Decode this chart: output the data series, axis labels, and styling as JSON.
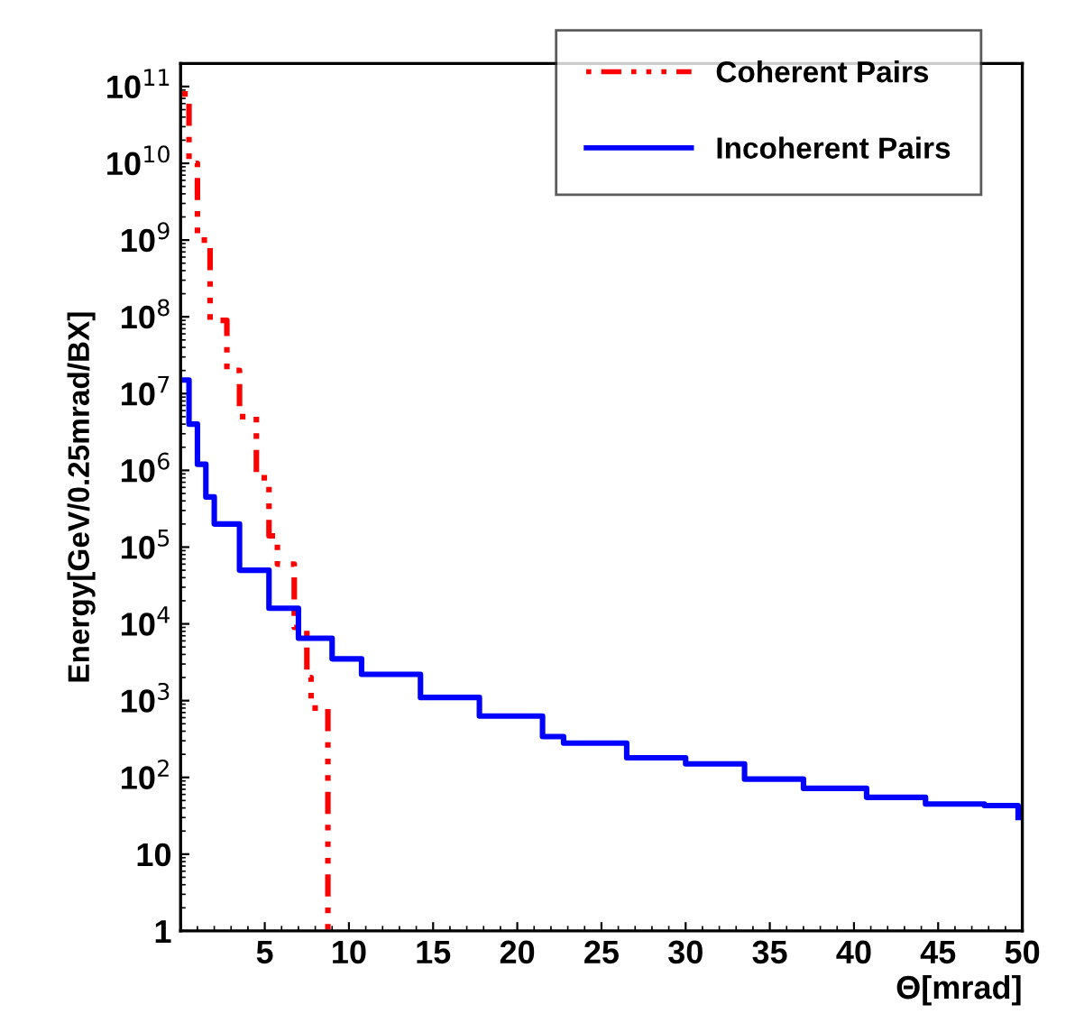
{
  "chart_data": {
    "type": "step",
    "xlabel": "Θ[mrad]",
    "ylabel": "Energy[GeV/0.25mrad/BX]",
    "log": "y",
    "grid": false,
    "legend": "top right",
    "marker": "none",
    "xlim": [
      0,
      50
    ],
    "ylim": [
      1,
      200000000000.0
    ],
    "xticks": [
      {
        "value": 0,
        "label": null
      },
      5,
      10,
      15,
      20,
      25,
      30,
      35,
      40,
      45,
      50
    ],
    "yticks": [
      1,
      10,
      {
        "value": 100,
        "label": "10$^{2}$"
      },
      {
        "value": 1000,
        "label": "10$^{3}$"
      },
      {
        "value": 10000,
        "label": "10$^{4}$"
      },
      {
        "value": 100000,
        "label": "10$^{5}$"
      },
      {
        "value": 1000000,
        "label": "10$^{6}$"
      },
      {
        "value": 10000000,
        "label": "10$^{7}$"
      },
      {
        "value": 100000000,
        "label": "10$^{8}$"
      },
      {
        "value": 1000000000,
        "label": "10$^{9}$"
      },
      {
        "value": 10000000000,
        "label": "10$^{10}$"
      },
      {
        "value": 100000000000,
        "label": "10$^{11}$"
      }
    ],
    "series": [
      {
        "name": "Coherent Pairs",
        "color": "#ff0000",
        "line_style": "dotted",
        "x": [
          0.1,
          0.5,
          1.0,
          1.75,
          2.75,
          3.5,
          4.5,
          5.25,
          5.75,
          6.75,
          7.5,
          7.75,
          8.75
        ],
        "values": [
          80000000000.0,
          10000000000.0,
          1000000000.0,
          90000000.0,
          20000000.0,
          5000000.0,
          800000.0,
          140000.0,
          60000.0,
          9000.0,
          2000.0,
          800,
          1
        ]
      },
      {
        "name": "Incoherent Pairs",
        "color": "#0000ff",
        "line_style": "solid",
        "x": [
          0.1,
          0.5,
          1.0,
          1.5,
          2.0,
          3.5,
          5.25,
          7.0,
          9.0,
          10.75,
          14.25,
          17.75,
          21.5,
          22.75,
          26.5,
          30.0,
          33.5,
          37.0,
          40.75,
          44.25,
          47.75,
          49.75
        ],
        "values": [
          15000000.0,
          4000000.0,
          1200000.0,
          450000.0,
          200000.0,
          50000.0,
          16000.0,
          6500.0,
          3500.0,
          2200.0,
          1100.0,
          630,
          340,
          280,
          180,
          150,
          95,
          72,
          55,
          45,
          43,
          30
        ]
      }
    ]
  }
}
